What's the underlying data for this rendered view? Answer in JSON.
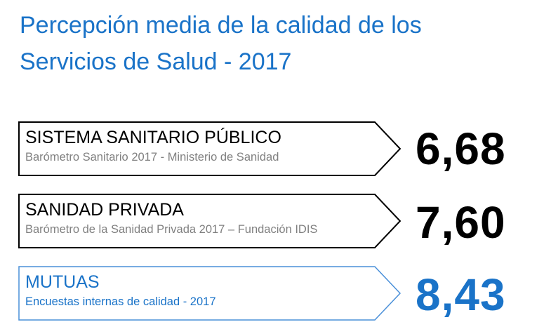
{
  "title_line1": "Percepción media de la calidad de los",
  "title_line2": "Servicios de Salud - 2017",
  "colors": {
    "accent": "#1a73c8",
    "dark": "#000000",
    "muted": "#808080",
    "blue_border": "#4a90d9"
  },
  "rows": [
    {
      "title": "SISTEMA SANITARIO PÚBLICO",
      "subtitle": "Barómetro Sanitario 2017 - Ministerio de Sanidad",
      "score": "6,68"
    },
    {
      "title": "SANIDAD PRIVADA",
      "subtitle": "Barómetro  de la Sanidad Privada 2017  – Fundación IDIS",
      "score": "7,60"
    },
    {
      "title": "MUTUAS",
      "subtitle": "Encuestas internas de calidad - 2017",
      "score": "8,43"
    }
  ]
}
